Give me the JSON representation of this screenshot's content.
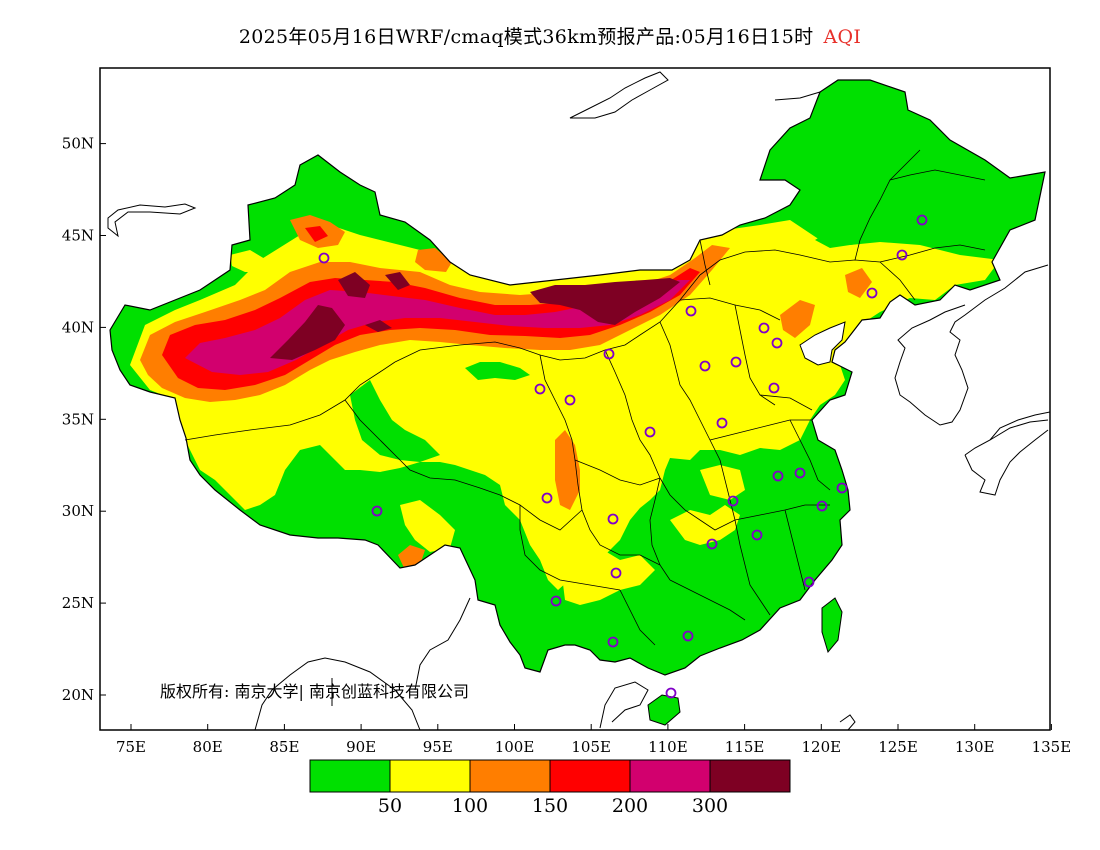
{
  "title": {
    "text": "2025年05月16日WRF/cmaq模式36km预报产品:05月16日15时",
    "variable": "AQI"
  },
  "axes": {
    "lon_labels": [
      "75E",
      "80E",
      "85E",
      "90E",
      "95E",
      "100E",
      "105E",
      "110E",
      "115E",
      "120E",
      "125E",
      "130E",
      "135E"
    ],
    "lat_labels": [
      "20N",
      "25N",
      "30N",
      "35N",
      "40N",
      "45N",
      "50N"
    ]
  },
  "copyright": "版权所有: 南京大学| 南京创蓝科技有限公司",
  "legend": {
    "colors": [
      "#00e000",
      "#ffff00",
      "#ff7e00",
      "#ff0000",
      "#d2006e",
      "#7e0023"
    ],
    "labels": [
      "50",
      "100",
      "150",
      "200",
      "300"
    ]
  },
  "map": {
    "region": "China",
    "lon_range": [
      73,
      135
    ],
    "lat_range": [
      18,
      54
    ]
  }
}
